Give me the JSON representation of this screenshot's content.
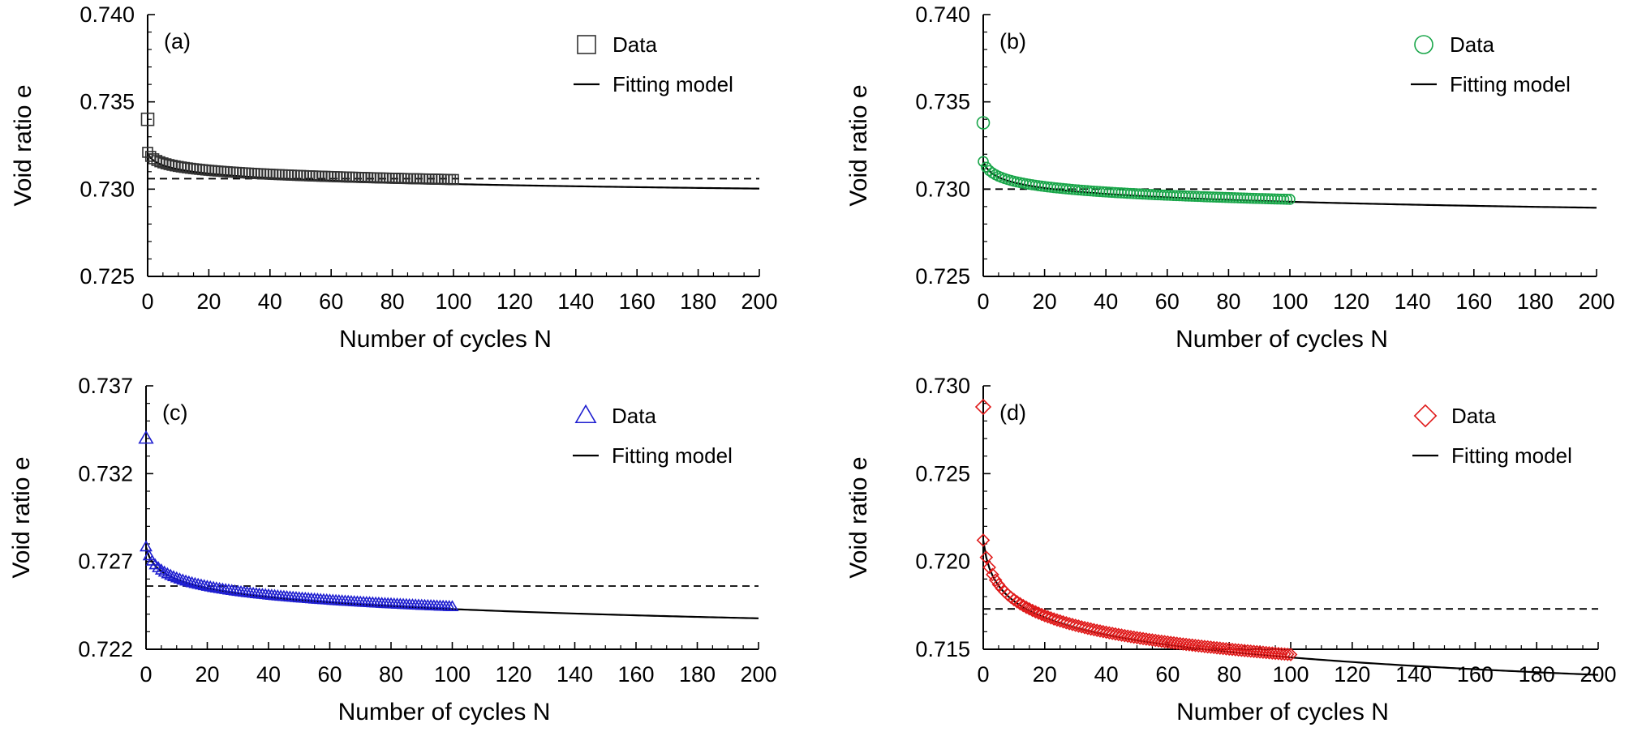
{
  "chart_data": [
    {
      "type": "scatter",
      "panel_label": "(a)",
      "xlabel": "Number of cycles N",
      "ylabel": "Void ratio e",
      "xlim": [
        0,
        200
      ],
      "ylim": [
        0.725,
        0.74
      ],
      "x_ticks": [
        0,
        20,
        40,
        60,
        80,
        100,
        120,
        140,
        160,
        180,
        200
      ],
      "y_ticks": [
        "0.725",
        "0.730",
        "0.735",
        "0.740"
      ],
      "marker": "square",
      "color": "#333333",
      "legend": {
        "position": "top-right",
        "data_label": "Data",
        "fit_label": "Fitting model"
      },
      "data": {
        "x0": 0.734,
        "a": 0.73211,
        "b": 0.000338,
        "n_max": 100
      },
      "fit": {
        "a": 0.73205,
        "b": 0.000381,
        "n_max": 200
      },
      "asymptote": 0.7306
    },
    {
      "type": "scatter",
      "panel_label": "(b)",
      "xlabel": "Number of cycles N",
      "ylabel": "Void ratio e",
      "xlim": [
        0,
        200
      ],
      "ylim": [
        0.725,
        0.74
      ],
      "x_ticks": [
        0,
        20,
        40,
        60,
        80,
        100,
        120,
        140,
        160,
        180,
        200
      ],
      "y_ticks": [
        "0.725",
        "0.730",
        "0.735",
        "0.740"
      ],
      "marker": "circle",
      "color": "#1aa64a",
      "legend": {
        "position": "top-right",
        "data_label": "Data",
        "fit_label": "Fitting model"
      },
      "data": {
        "x0": 0.7338,
        "a": 0.73158,
        "b": 0.000469,
        "n_max": 100
      },
      "fit": {
        "a": 0.73158,
        "b": 0.000499,
        "n_max": 200
      },
      "asymptote": 0.73
    },
    {
      "type": "scatter",
      "panel_label": "(c)",
      "xlabel": "Number of cycles N",
      "ylabel": "Void ratio e",
      "xlim": [
        0,
        200
      ],
      "ylim": [
        0.722,
        0.737
      ],
      "x_ticks": [
        0,
        20,
        40,
        60,
        80,
        100,
        120,
        140,
        160,
        180,
        200
      ],
      "y_ticks": [
        "0.722",
        "0.727",
        "0.732",
        "0.737"
      ],
      "marker": "triangle",
      "color": "#1f1fd0",
      "legend": {
        "position": "top-right",
        "data_label": "Data",
        "fit_label": "Fitting model"
      },
      "data": {
        "x0": 0.734,
        "a": 0.72782,
        "b": 0.000738,
        "n_max": 100
      },
      "fit": {
        "a": 0.72782,
        "b": 0.000765,
        "n_max": 200
      },
      "asymptote": 0.7256
    },
    {
      "type": "scatter",
      "panel_label": "(d)",
      "xlabel": "Number of cycles N",
      "ylabel": "Void ratio e",
      "xlim": [
        0,
        200
      ],
      "ylim": [
        0.715,
        0.73
      ],
      "x_ticks": [
        0,
        20,
        40,
        60,
        80,
        100,
        120,
        140,
        160,
        180,
        200
      ],
      "y_ticks": [
        "0.715",
        "0.720",
        "0.725",
        "0.730"
      ],
      "marker": "diamond",
      "color": "#e01b1b",
      "legend": {
        "position": "top-right",
        "data_label": "Data",
        "fit_label": "Fitting model"
      },
      "data": {
        "x0": 0.7288,
        "a": 0.72121,
        "b": 0.001411,
        "n_max": 100
      },
      "fit": {
        "a": 0.72121,
        "b": 0.001446,
        "n_max": 200
      },
      "asymptote": 0.7173
    }
  ]
}
